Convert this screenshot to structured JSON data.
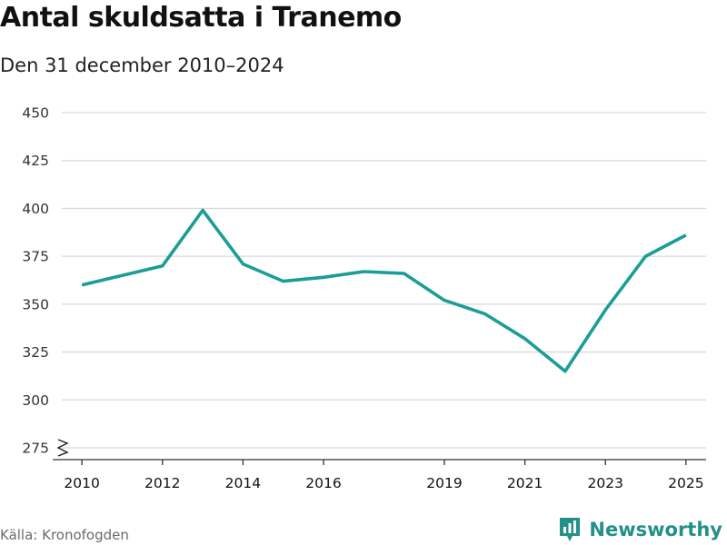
{
  "title": "Antal skuldsatta i Tranemo",
  "subtitle": "Den 31 december 2010–2024",
  "source": "Källa: Kronofogden",
  "brand": "Newsworthy",
  "icons": {
    "brand_logo": "newsworthy-logo-icon",
    "axis_break": "axis-break-icon"
  },
  "colors": {
    "line": "#1a9e96",
    "brand": "#23908a",
    "grid": "#d9d9d9",
    "axis": "#333333"
  },
  "chart_data": {
    "type": "line",
    "title": "Antal skuldsatta i Tranemo",
    "subtitle": "Den 31 december 2010–2024",
    "x": [
      2010,
      2011,
      2012,
      2013,
      2014,
      2015,
      2016,
      2017,
      2018,
      2019,
      2020,
      2021,
      2022,
      2023,
      2024
    ],
    "series": [
      {
        "values": [
          360,
          365,
          370,
          399,
          371,
          362,
          364,
          367,
          366,
          352,
          345,
          332,
          315,
          347,
          375
        ]
      }
    ],
    "last_partial_value": 386,
    "x_ticks": [
      "2010",
      "2012",
      "2014",
      "2016",
      "2019",
      "2021",
      "2023",
      "2025"
    ],
    "y_ticks": [
      "275",
      "300",
      "325",
      "350",
      "375",
      "400",
      "425",
      "450"
    ],
    "ylim": [
      275,
      450
    ],
    "xlim": [
      2009.5,
      2025.5
    ],
    "grid": true,
    "axis_break": true,
    "legend": "none"
  }
}
